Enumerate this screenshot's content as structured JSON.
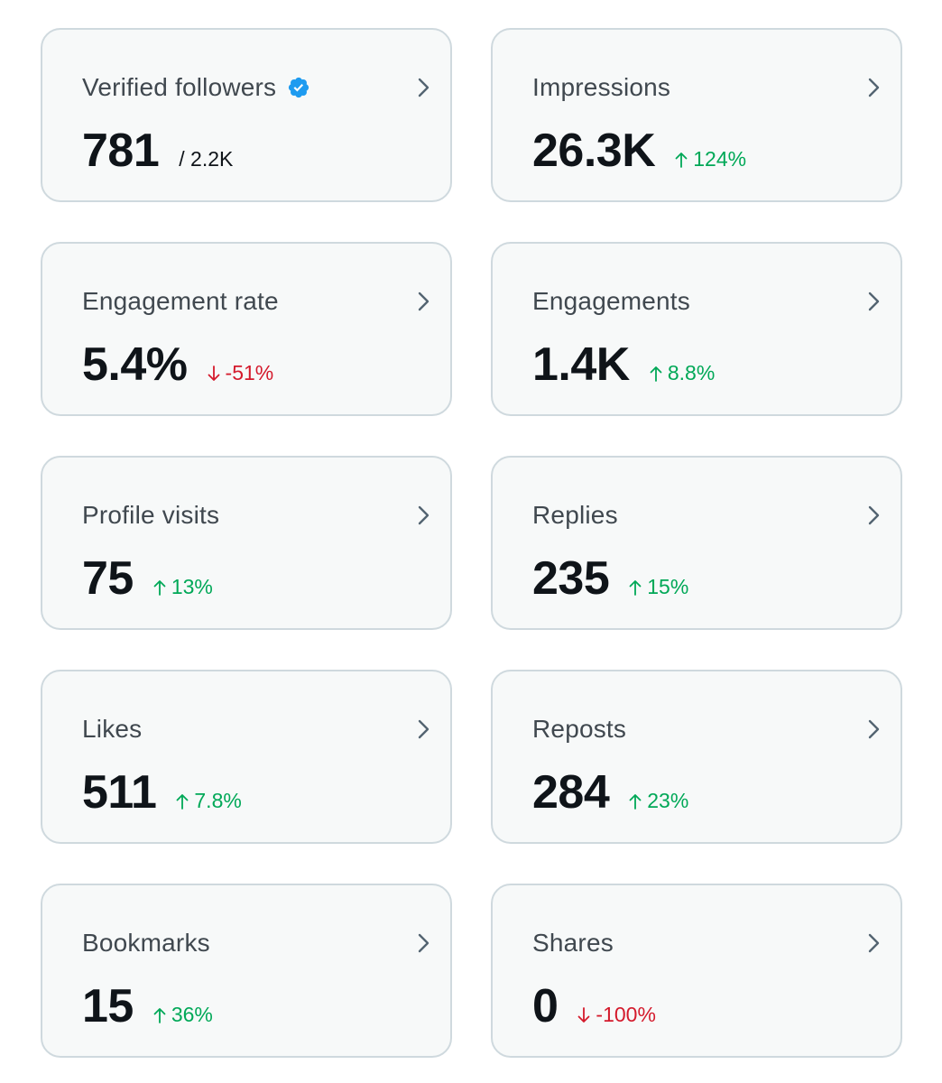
{
  "colors": {
    "card_bg": "#f7f9f9",
    "card_border": "#cfd9de",
    "label": "#40484f",
    "value": "#0f1419",
    "up": "#00a857",
    "down": "#d41a2c",
    "verified": "#1d9bf0"
  },
  "metrics": [
    {
      "label": "Verified followers",
      "value": "781",
      "sub": "/ 2.2K",
      "icon": "verified-badge-icon"
    },
    {
      "label": "Impressions",
      "value": "26.3K",
      "delta": "124%",
      "direction": "up"
    },
    {
      "label": "Engagement rate",
      "value": "5.4%",
      "delta": "-51%",
      "direction": "down"
    },
    {
      "label": "Engagements",
      "value": "1.4K",
      "delta": "8.8%",
      "direction": "up"
    },
    {
      "label": "Profile visits",
      "value": "75",
      "delta": "13%",
      "direction": "up"
    },
    {
      "label": "Replies",
      "value": "235",
      "delta": "15%",
      "direction": "up"
    },
    {
      "label": "Likes",
      "value": "511",
      "delta": "7.8%",
      "direction": "up"
    },
    {
      "label": "Reposts",
      "value": "284",
      "delta": "23%",
      "direction": "up"
    },
    {
      "label": "Bookmarks",
      "value": "15",
      "delta": "36%",
      "direction": "up"
    },
    {
      "label": "Shares",
      "value": "0",
      "delta": "-100%",
      "direction": "down"
    }
  ]
}
